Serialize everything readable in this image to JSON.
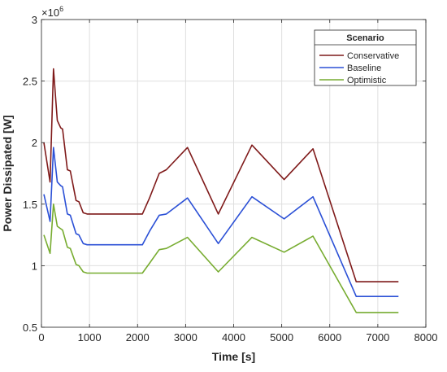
{
  "chart_data": {
    "type": "line",
    "xlabel": "Time [s]",
    "ylabel": "Power Dissipated [W]",
    "y_multiplier_label": "×10",
    "y_multiplier_exponent": "6",
    "xlim": [
      0,
      8000
    ],
    "ylim": [
      0.5,
      3.0
    ],
    "x_ticks": [
      0,
      1000,
      2000,
      3000,
      4000,
      5000,
      6000,
      7000,
      8000
    ],
    "x_tick_labels": [
      "0",
      "1000",
      "2000",
      "3000",
      "4000",
      "5000",
      "6000",
      "7000",
      "8000"
    ],
    "y_ticks": [
      0.5,
      1.0,
      1.5,
      2.0,
      2.5,
      3.0
    ],
    "y_tick_labels": [
      "0.5",
      "1",
      "1.5",
      "2",
      "2.5",
      "3"
    ],
    "grid": true,
    "legend": {
      "title": "Scenario",
      "position": "top-right"
    },
    "series": [
      {
        "name": "Conservative",
        "color": "#7f1a1a",
        "points": [
          [
            50,
            2.0
          ],
          [
            180,
            1.68
          ],
          [
            250,
            2.6
          ],
          [
            330,
            2.18
          ],
          [
            400,
            2.12
          ],
          [
            440,
            2.11
          ],
          [
            540,
            1.78
          ],
          [
            600,
            1.77
          ],
          [
            720,
            1.53
          ],
          [
            780,
            1.52
          ],
          [
            870,
            1.43
          ],
          [
            950,
            1.42
          ],
          [
            2100,
            1.42
          ],
          [
            2250,
            1.55
          ],
          [
            2450,
            1.75
          ],
          [
            2600,
            1.78
          ],
          [
            3040,
            1.96
          ],
          [
            3680,
            1.42
          ],
          [
            4380,
            1.98
          ],
          [
            5050,
            1.7
          ],
          [
            5650,
            1.95
          ],
          [
            6550,
            0.87
          ],
          [
            7430,
            0.87
          ]
        ]
      },
      {
        "name": "Baseline",
        "color": "#2b50d6",
        "points": [
          [
            50,
            1.58
          ],
          [
            180,
            1.36
          ],
          [
            250,
            1.96
          ],
          [
            330,
            1.68
          ],
          [
            400,
            1.65
          ],
          [
            440,
            1.64
          ],
          [
            540,
            1.42
          ],
          [
            600,
            1.41
          ],
          [
            720,
            1.26
          ],
          [
            780,
            1.25
          ],
          [
            870,
            1.18
          ],
          [
            950,
            1.17
          ],
          [
            2100,
            1.17
          ],
          [
            2250,
            1.28
          ],
          [
            2450,
            1.41
          ],
          [
            2600,
            1.42
          ],
          [
            3040,
            1.55
          ],
          [
            3680,
            1.18
          ],
          [
            4380,
            1.56
          ],
          [
            5050,
            1.38
          ],
          [
            5650,
            1.56
          ],
          [
            6550,
            0.75
          ],
          [
            7430,
            0.75
          ]
        ]
      },
      {
        "name": "Optimistic",
        "color": "#77ac30",
        "points": [
          [
            50,
            1.25
          ],
          [
            180,
            1.1
          ],
          [
            250,
            1.5
          ],
          [
            330,
            1.32
          ],
          [
            400,
            1.3
          ],
          [
            440,
            1.29
          ],
          [
            540,
            1.15
          ],
          [
            600,
            1.14
          ],
          [
            720,
            1.01
          ],
          [
            780,
            1.0
          ],
          [
            870,
            0.95
          ],
          [
            950,
            0.94
          ],
          [
            2100,
            0.94
          ],
          [
            2250,
            1.02
          ],
          [
            2450,
            1.13
          ],
          [
            2600,
            1.14
          ],
          [
            3040,
            1.23
          ],
          [
            3680,
            0.95
          ],
          [
            4380,
            1.23
          ],
          [
            5050,
            1.11
          ],
          [
            5650,
            1.24
          ],
          [
            6550,
            0.62
          ],
          [
            7430,
            0.62
          ]
        ]
      }
    ]
  }
}
